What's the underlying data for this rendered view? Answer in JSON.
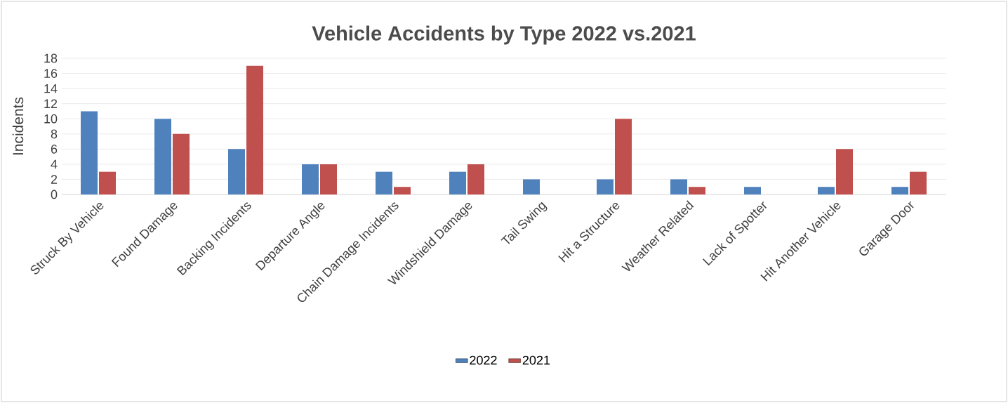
{
  "chart_data": {
    "type": "bar",
    "title": "Vehicle Accidents by Type 2022 vs.2021",
    "ylabel": "Incidents",
    "categories": [
      "Struck By Vehicle",
      "Found Damage",
      "Backing Incidents",
      "Departure Angle",
      "Chain Damage Incidents",
      "Windshield Damage",
      "Tail Swing",
      "Hit a Structure",
      "Weather Related",
      "Lack of Spotter",
      "Hit Another Vehicle",
      "Garage Door"
    ],
    "series": [
      {
        "name": "2022",
        "color": "#4f81bd",
        "values": [
          11,
          10,
          6,
          4,
          3,
          3,
          2,
          2,
          2,
          1,
          1,
          1
        ]
      },
      {
        "name": "2021",
        "color": "#c0504d",
        "values": [
          3,
          8,
          17,
          4,
          1,
          4,
          0,
          10,
          1,
          0,
          6,
          3
        ]
      }
    ],
    "ylim": [
      0,
      18
    ],
    "yticks": [
      0,
      2,
      4,
      6,
      8,
      10,
      12,
      14,
      16,
      18
    ],
    "grid": "y",
    "legend": "bottom"
  }
}
